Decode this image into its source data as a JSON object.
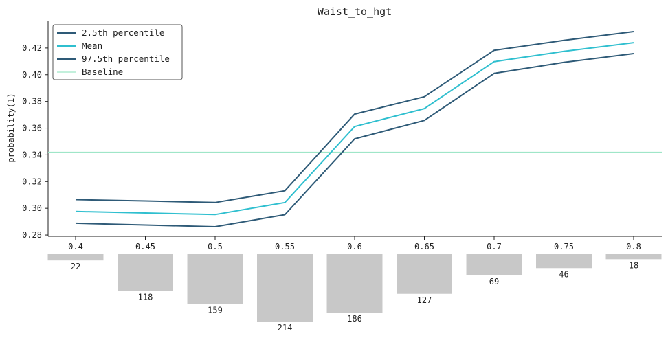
{
  "chart_data": {
    "type": "line",
    "title": "Waist_to_hgt",
    "xlabel": "",
    "ylabel": "probability(1)",
    "ylim": [
      0.279,
      0.44
    ],
    "grid": false,
    "legend_position": "top-left",
    "x": [
      0.4,
      0.45,
      0.5,
      0.55,
      0.6,
      0.65,
      0.7,
      0.75,
      0.8
    ],
    "x_tick_labels": [
      "0.4",
      "0.45",
      "0.5",
      "0.55",
      "0.6",
      "0.65",
      "0.7",
      "0.75",
      "0.8"
    ],
    "y_ticks": [
      0.28,
      0.3,
      0.32,
      0.34,
      0.36,
      0.38,
      0.4,
      0.42
    ],
    "y_tick_labels": [
      "0.28",
      "0.30",
      "0.32",
      "0.34",
      "0.36",
      "0.38",
      "0.40",
      "0.42"
    ],
    "series": [
      {
        "name": "2.5th percentile",
        "color": "#2e5a77",
        "values": [
          0.2888,
          0.2875,
          0.2862,
          0.2952,
          0.352,
          0.3658,
          0.401,
          0.4093,
          0.4158
        ]
      },
      {
        "name": "Mean",
        "color": "#2fbfcf",
        "values": [
          0.2976,
          0.2965,
          0.2953,
          0.3043,
          0.3612,
          0.3746,
          0.4098,
          0.4175,
          0.424
        ]
      },
      {
        "name": "97.5th percentile",
        "color": "#2e5a77",
        "values": [
          0.3065,
          0.3055,
          0.3043,
          0.3131,
          0.3705,
          0.3835,
          0.4183,
          0.4257,
          0.4323
        ]
      }
    ],
    "baseline": {
      "name": "Baseline",
      "color": "#9fe6c8",
      "value": 0.342
    },
    "counts": {
      "color": "#c8c8c8",
      "values": [
        22,
        118,
        159,
        214,
        186,
        127,
        69,
        46,
        18
      ],
      "labels": [
        "22",
        "118",
        "159",
        "214",
        "186",
        "127",
        "69",
        "46",
        "18"
      ]
    }
  }
}
